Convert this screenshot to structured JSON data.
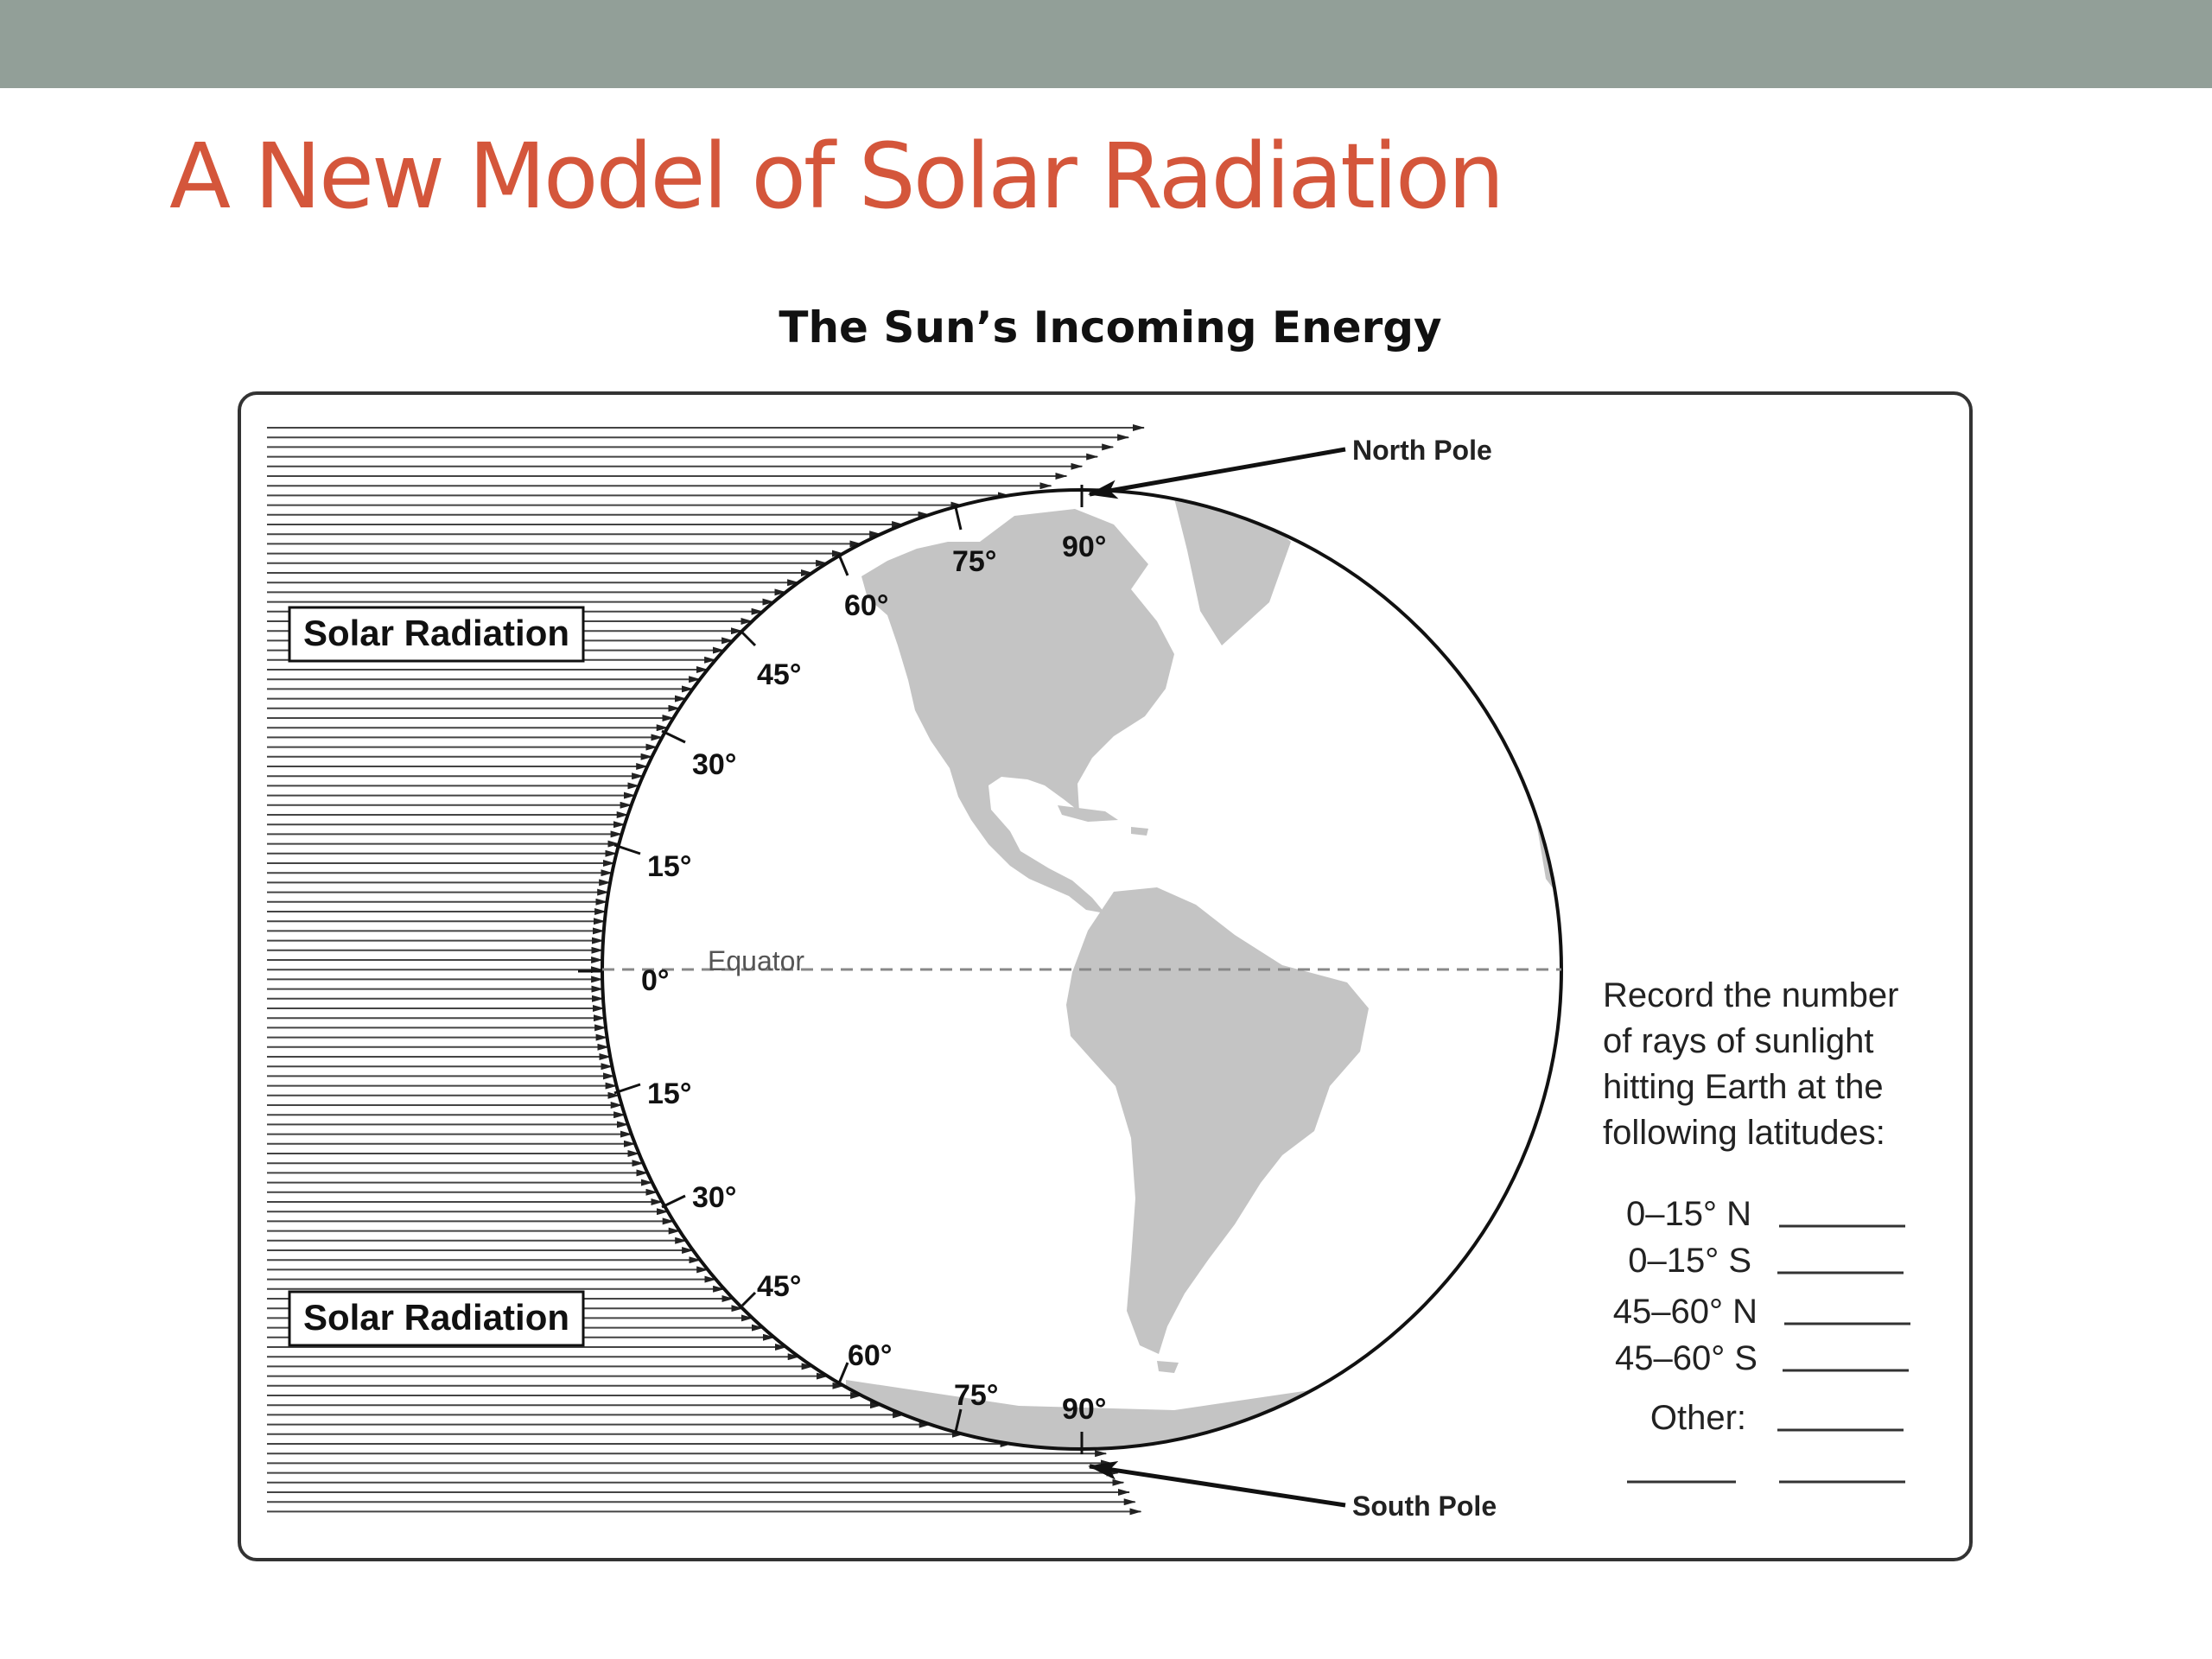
{
  "slide": {
    "title": "A New Model of Solar Radiation",
    "header_bar_color": "#929f98",
    "title_color": "#d4563b"
  },
  "diagram": {
    "title": "The Sun’s Incoming Energy",
    "solar_label_top": "Solar Radiation",
    "solar_label_bottom": "Solar Radiation",
    "north_pole_label": "North Pole",
    "south_pole_label": "South Pole",
    "equator_label": "Equator",
    "lat_north": [
      "0°",
      "15°",
      "30°",
      "45°",
      "60°",
      "75°",
      "90°"
    ],
    "lat_south": [
      "15°",
      "30°",
      "45°",
      "60°",
      "75°",
      "90°"
    ],
    "land_color": "#c4c4c4",
    "record_prompt": [
      "Record the number",
      "of rays of sunlight",
      "hitting Earth at the",
      "following latitudes:"
    ],
    "record_items": [
      "0–15° N",
      "0–15° S",
      "45–60° N",
      "45–60° S"
    ],
    "other_label": "Other:"
  }
}
